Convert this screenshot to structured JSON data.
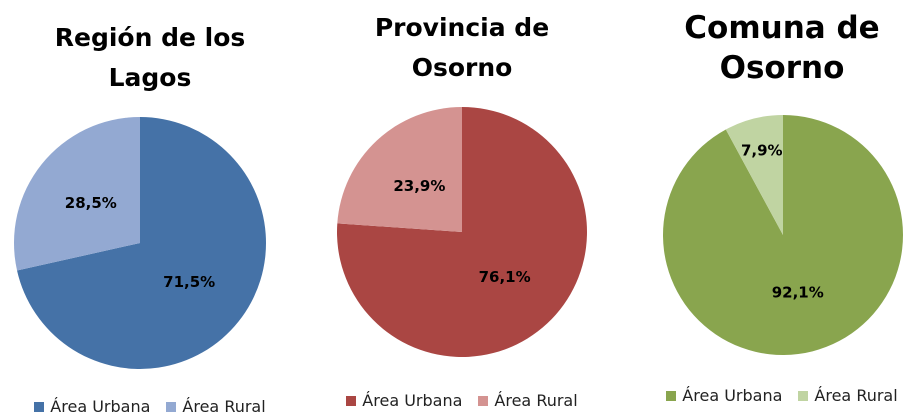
{
  "chart_data": [
    {
      "type": "pie",
      "title": "Región de los Lagos",
      "categories": [
        "Área Urbana",
        "Área Rural"
      ],
      "values": [
        71.5,
        28.5
      ],
      "value_labels": [
        "71,5%",
        "28,5%"
      ],
      "colors": [
        "#4572a7",
        "#93a9d2"
      ]
    },
    {
      "type": "pie",
      "title": "Provincia de Osorno",
      "categories": [
        "Área Urbana",
        "Área Rural"
      ],
      "values": [
        76.1,
        23.9
      ],
      "value_labels": [
        "76,1%",
        "23,9%"
      ],
      "colors": [
        "#aa4643",
        "#d49391"
      ]
    },
    {
      "type": "pie",
      "title": "Comuna de Osorno",
      "categories": [
        "Área Urbana",
        "Área Rural"
      ],
      "values": [
        92.1,
        7.9
      ],
      "value_labels": [
        "92,1%",
        "7,9%"
      ],
      "colors": [
        "#89a54e",
        "#c0d4a2"
      ]
    }
  ]
}
